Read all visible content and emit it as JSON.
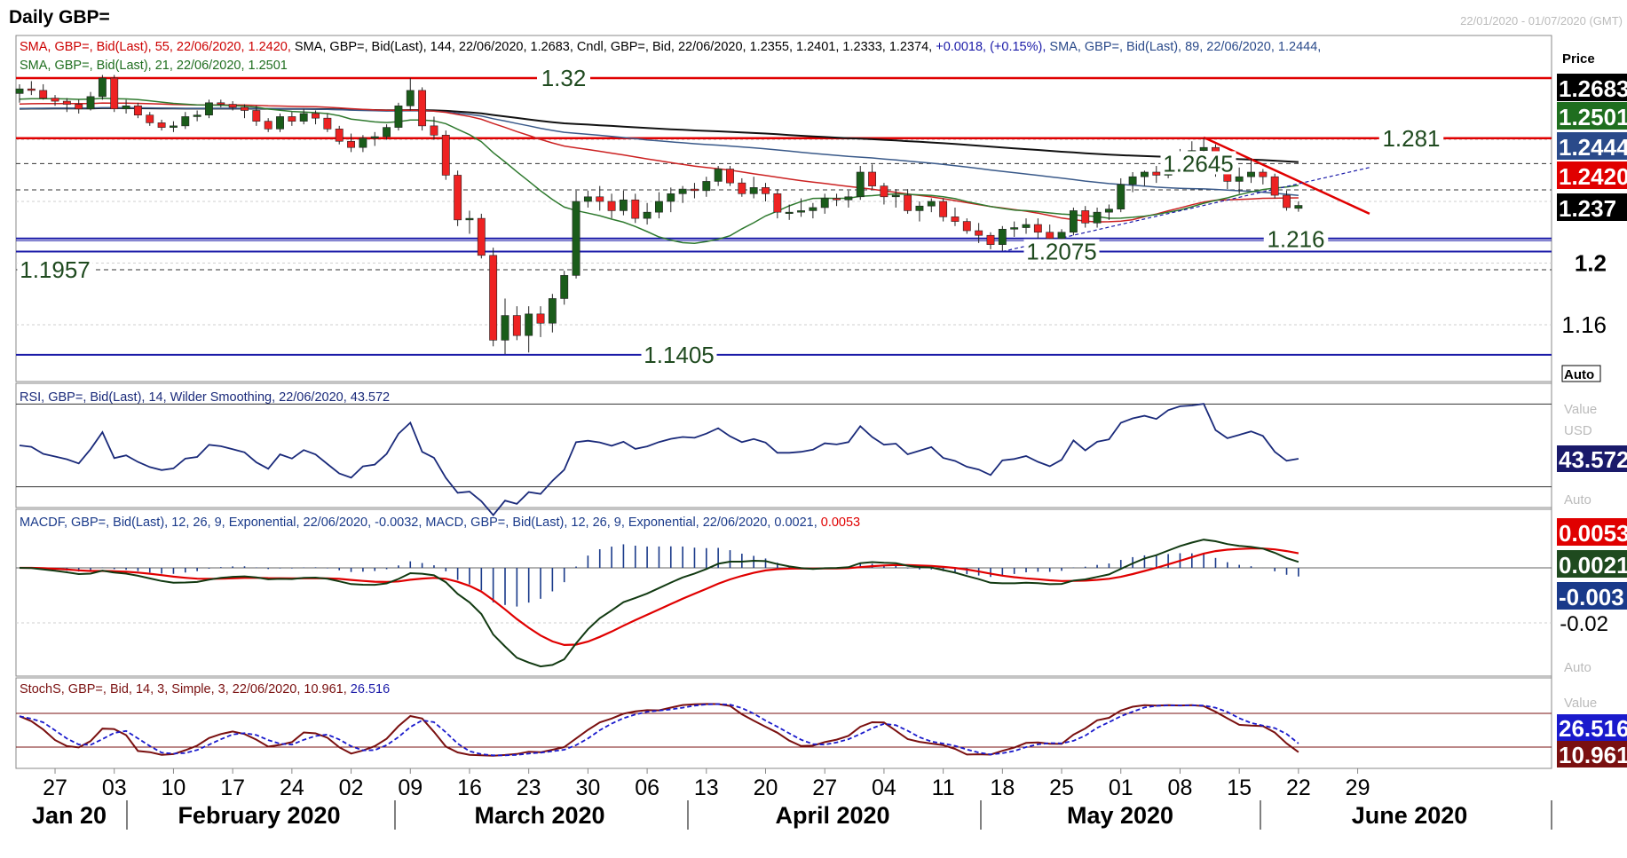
{
  "window": {
    "title": "Daily GBP=",
    "date_range": "22/01/2020 - 01/07/2020 (GMT)"
  },
  "panes": {
    "price": {
      "legend_line1": [
        {
          "text": "SMA, GBP=, Bid(Last),  55, 22/06/2020, 1.2420,",
          "color": "#cc0000"
        },
        {
          "text": " SMA, GBP=, Bid(Last),  144, 22/06/2020, 1.2683,",
          "color": "#000000"
        },
        {
          "text": " Cndl, GBP=, Bid,  22/06/2020, 1.2355, 1.2401, 1.2333, 1.2374,",
          "color": "#000000"
        },
        {
          "text": " +0.0018, (+0.15%),",
          "color": "#1a1aa8"
        },
        {
          "text": " SMA, GBP=, Bid(Last),  89, 22/06/2020, 1.2444,",
          "color": "#2a4a8a"
        }
      ],
      "legend_line2": [
        {
          "text": "SMA, GBP=, Bid(Last),  21, 22/06/2020, 1.2501",
          "color": "#1f6e1f"
        }
      ],
      "axis_title": "Price",
      "auto_label": "Auto",
      "tick_labels": [
        "1.2",
        "1.16"
      ],
      "value_badges": [
        {
          "text": "1.2683",
          "bg": "#000000",
          "fg": "#ffffff"
        },
        {
          "text": "1.2501",
          "bg": "#1f6e1f",
          "fg": "#ffffff"
        },
        {
          "text": "1.2444",
          "bg": "#2a4a8a",
          "fg": "#ffffff"
        },
        {
          "text": "1.2420",
          "bg": "#e00000",
          "fg": "#ffffff"
        },
        {
          "text": "1.237",
          "bg": "#000000",
          "fg": "#ffffff"
        }
      ],
      "level_labels": [
        "1.32",
        "1.281",
        "1.2645",
        "1.216",
        "1.2075",
        "1.1957",
        "1.1405"
      ]
    },
    "rsi": {
      "legend": "RSI, GBP=, Bid(Last),  14, Wilder Smoothing, 22/06/2020, 43.572",
      "axis_value": "Value",
      "axis_unit": "USD",
      "badge": "43.572",
      "auto_label": "Auto"
    },
    "macd": {
      "legend": [
        {
          "text": "MACDF, GBP=, Bid(Last),  12, 26, 9, Exponential, 22/06/2020, -0.0032,",
          "color": "#1a3a8a"
        },
        {
          "text": " MACD, GBP=, Bid(Last),  12, 26, 9, Exponential, 22/06/2020, 0.0021,",
          "color": "#1a3a8a"
        },
        {
          "text": " 0.0053",
          "color": "#e00000"
        }
      ],
      "tick_label": "-0.02",
      "badges": [
        {
          "text": "0.0053",
          "bg": "#e00000"
        },
        {
          "text": "0.0021",
          "bg": "#1f4a1f"
        },
        {
          "text": "-0.003",
          "bg": "#1a3a8a"
        }
      ],
      "auto_label": "Auto"
    },
    "stoch": {
      "legend": [
        {
          "text": "StochS, GBP=, Bid,  14, 3, Simple, 3, 22/06/2020, 10.961,",
          "color": "#7a1010"
        },
        {
          "text": " 26.516",
          "color": "#1a1aa8"
        }
      ],
      "axis_value": "Value",
      "badges": [
        {
          "text": "26.516",
          "bg": "#1a1acc"
        },
        {
          "text": "10.961",
          "bg": "#7a1010"
        }
      ]
    }
  },
  "x_axis": {
    "day_ticks": [
      "27",
      "03",
      "10",
      "17",
      "24",
      "02",
      "09",
      "16",
      "23",
      "30",
      "06",
      "13",
      "20",
      "27",
      "04",
      "11",
      "18",
      "25",
      "01",
      "08",
      "15",
      "22",
      "29"
    ],
    "month_labels": [
      "Jan 20",
      "February 2020",
      "March 2020",
      "April 2020",
      "May 2020",
      "June 2020"
    ]
  },
  "colors": {
    "bull": "#1a5c1a",
    "bear": "#ee2222",
    "sma55": "#cc2222",
    "sma144": "#111111",
    "sma89": "#3a5a8a",
    "sma21": "#2f7a2f",
    "resistance": "#e00000",
    "support": "#1a1aa8",
    "rsi_line": "#1a2a7a",
    "macd_line": "#123a12",
    "signal_line": "#e00000",
    "hist": "#1a3a8a",
    "stoch_k": "#7a1010",
    "stoch_d": "#1a1acc"
  },
  "chart_data": {
    "type": "candlestick",
    "title": "Daily GBP=",
    "period": "22/01/2020 - 01/07/2020 (GMT)",
    "ylim": [
      1.14,
      1.335
    ],
    "ohlc": [
      {
        "d": "22/01",
        "o": 1.31,
        "h": 1.316,
        "l": 1.304,
        "c": 1.313
      },
      {
        "d": "23/01",
        "o": 1.313,
        "h": 1.318,
        "l": 1.309,
        "c": 1.312
      },
      {
        "d": "24/01",
        "o": 1.312,
        "h": 1.316,
        "l": 1.306,
        "c": 1.307
      },
      {
        "d": "27/01",
        "o": 1.307,
        "h": 1.309,
        "l": 1.302,
        "c": 1.305
      },
      {
        "d": "28/01",
        "o": 1.305,
        "h": 1.307,
        "l": 1.298,
        "c": 1.303
      },
      {
        "d": "29/01",
        "o": 1.303,
        "h": 1.306,
        "l": 1.297,
        "c": 1.3
      },
      {
        "d": "30/01",
        "o": 1.3,
        "h": 1.311,
        "l": 1.299,
        "c": 1.308
      },
      {
        "d": "31/01",
        "o": 1.308,
        "h": 1.322,
        "l": 1.306,
        "c": 1.32
      },
      {
        "d": "03/02",
        "o": 1.32,
        "h": 1.322,
        "l": 1.298,
        "c": 1.3
      },
      {
        "d": "04/02",
        "o": 1.3,
        "h": 1.306,
        "l": 1.297,
        "c": 1.302
      },
      {
        "d": "05/02",
        "o": 1.302,
        "h": 1.304,
        "l": 1.294,
        "c": 1.296
      },
      {
        "d": "06/02",
        "o": 1.296,
        "h": 1.298,
        "l": 1.289,
        "c": 1.291
      },
      {
        "d": "07/02",
        "o": 1.291,
        "h": 1.293,
        "l": 1.286,
        "c": 1.288
      },
      {
        "d": "10/02",
        "o": 1.288,
        "h": 1.292,
        "l": 1.285,
        "c": 1.289
      },
      {
        "d": "11/02",
        "o": 1.289,
        "h": 1.298,
        "l": 1.287,
        "c": 1.295
      },
      {
        "d": "12/02",
        "o": 1.295,
        "h": 1.299,
        "l": 1.292,
        "c": 1.296
      },
      {
        "d": "13/02",
        "o": 1.296,
        "h": 1.306,
        "l": 1.294,
        "c": 1.304
      },
      {
        "d": "14/02",
        "o": 1.304,
        "h": 1.306,
        "l": 1.301,
        "c": 1.303
      },
      {
        "d": "17/02",
        "o": 1.303,
        "h": 1.305,
        "l": 1.299,
        "c": 1.301
      },
      {
        "d": "18/02",
        "o": 1.301,
        "h": 1.303,
        "l": 1.294,
        "c": 1.299
      },
      {
        "d": "19/02",
        "o": 1.299,
        "h": 1.302,
        "l": 1.289,
        "c": 1.292
      },
      {
        "d": "20/02",
        "o": 1.292,
        "h": 1.294,
        "l": 1.285,
        "c": 1.287
      },
      {
        "d": "21/02",
        "o": 1.287,
        "h": 1.297,
        "l": 1.285,
        "c": 1.295
      },
      {
        "d": "24/02",
        "o": 1.295,
        "h": 1.298,
        "l": 1.289,
        "c": 1.292
      },
      {
        "d": "25/02",
        "o": 1.292,
        "h": 1.3,
        "l": 1.29,
        "c": 1.297
      },
      {
        "d": "26/02",
        "o": 1.297,
        "h": 1.299,
        "l": 1.29,
        "c": 1.294
      },
      {
        "d": "27/02",
        "o": 1.294,
        "h": 1.297,
        "l": 1.285,
        "c": 1.287
      },
      {
        "d": "28/02",
        "o": 1.287,
        "h": 1.289,
        "l": 1.277,
        "c": 1.279
      },
      {
        "d": "02/03",
        "o": 1.279,
        "h": 1.284,
        "l": 1.272,
        "c": 1.275
      },
      {
        "d": "03/03",
        "o": 1.275,
        "h": 1.283,
        "l": 1.272,
        "c": 1.281
      },
      {
        "d": "04/03",
        "o": 1.281,
        "h": 1.285,
        "l": 1.276,
        "c": 1.282
      },
      {
        "d": "05/03",
        "o": 1.282,
        "h": 1.29,
        "l": 1.28,
        "c": 1.288
      },
      {
        "d": "06/03",
        "o": 1.288,
        "h": 1.304,
        "l": 1.286,
        "c": 1.302
      },
      {
        "d": "09/03",
        "o": 1.302,
        "h": 1.32,
        "l": 1.299,
        "c": 1.312
      },
      {
        "d": "10/03",
        "o": 1.312,
        "h": 1.314,
        "l": 1.286,
        "c": 1.289
      },
      {
        "d": "11/03",
        "o": 1.289,
        "h": 1.295,
        "l": 1.28,
        "c": 1.283
      },
      {
        "d": "12/03",
        "o": 1.283,
        "h": 1.286,
        "l": 1.254,
        "c": 1.257
      },
      {
        "d": "13/03",
        "o": 1.257,
        "h": 1.26,
        "l": 1.224,
        "c": 1.228
      },
      {
        "d": "16/03",
        "o": 1.228,
        "h": 1.234,
        "l": 1.219,
        "c": 1.229
      },
      {
        "d": "17/03",
        "o": 1.229,
        "h": 1.232,
        "l": 1.203,
        "c": 1.205
      },
      {
        "d": "18/03",
        "o": 1.205,
        "h": 1.21,
        "l": 1.146,
        "c": 1.15
      },
      {
        "d": "19/03",
        "o": 1.15,
        "h": 1.177,
        "l": 1.141,
        "c": 1.166
      },
      {
        "d": "20/03",
        "o": 1.166,
        "h": 1.172,
        "l": 1.15,
        "c": 1.153
      },
      {
        "d": "23/03",
        "o": 1.153,
        "h": 1.172,
        "l": 1.142,
        "c": 1.167
      },
      {
        "d": "24/03",
        "o": 1.167,
        "h": 1.172,
        "l": 1.152,
        "c": 1.161
      },
      {
        "d": "25/03",
        "o": 1.161,
        "h": 1.18,
        "l": 1.155,
        "c": 1.177
      },
      {
        "d": "26/03",
        "o": 1.177,
        "h": 1.195,
        "l": 1.173,
        "c": 1.192
      },
      {
        "d": "27/03",
        "o": 1.192,
        "h": 1.247,
        "l": 1.19,
        "c": 1.24
      },
      {
        "d": "30/03",
        "o": 1.24,
        "h": 1.247,
        "l": 1.236,
        "c": 1.243
      },
      {
        "d": "31/03",
        "o": 1.243,
        "h": 1.25,
        "l": 1.234,
        "c": 1.24
      },
      {
        "d": "01/04",
        "o": 1.24,
        "h": 1.245,
        "l": 1.229,
        "c": 1.234
      },
      {
        "d": "02/04",
        "o": 1.234,
        "h": 1.247,
        "l": 1.231,
        "c": 1.241
      },
      {
        "d": "03/04",
        "o": 1.241,
        "h": 1.245,
        "l": 1.226,
        "c": 1.229
      },
      {
        "d": "06/04",
        "o": 1.229,
        "h": 1.239,
        "l": 1.225,
        "c": 1.233
      },
      {
        "d": "07/04",
        "o": 1.233,
        "h": 1.246,
        "l": 1.229,
        "c": 1.24
      },
      {
        "d": "08/04",
        "o": 1.24,
        "h": 1.249,
        "l": 1.233,
        "c": 1.245
      },
      {
        "d": "09/04",
        "o": 1.245,
        "h": 1.25,
        "l": 1.239,
        "c": 1.248
      },
      {
        "d": "10/04",
        "o": 1.248,
        "h": 1.252,
        "l": 1.242,
        "c": 1.247
      },
      {
        "d": "13/04",
        "o": 1.247,
        "h": 1.256,
        "l": 1.243,
        "c": 1.253
      },
      {
        "d": "14/04",
        "o": 1.253,
        "h": 1.263,
        "l": 1.25,
        "c": 1.261
      },
      {
        "d": "15/04",
        "o": 1.261,
        "h": 1.263,
        "l": 1.25,
        "c": 1.252
      },
      {
        "d": "16/04",
        "o": 1.252,
        "h": 1.255,
        "l": 1.243,
        "c": 1.245
      },
      {
        "d": "17/04",
        "o": 1.245,
        "h": 1.256,
        "l": 1.242,
        "c": 1.249
      },
      {
        "d": "20/04",
        "o": 1.249,
        "h": 1.252,
        "l": 1.24,
        "c": 1.245
      },
      {
        "d": "21/04",
        "o": 1.245,
        "h": 1.248,
        "l": 1.229,
        "c": 1.233
      },
      {
        "d": "22/04",
        "o": 1.233,
        "h": 1.238,
        "l": 1.228,
        "c": 1.233
      },
      {
        "d": "23/04",
        "o": 1.233,
        "h": 1.242,
        "l": 1.23,
        "c": 1.234
      },
      {
        "d": "24/04",
        "o": 1.234,
        "h": 1.239,
        "l": 1.229,
        "c": 1.236
      },
      {
        "d": "27/04",
        "o": 1.236,
        "h": 1.245,
        "l": 1.232,
        "c": 1.242
      },
      {
        "d": "28/04",
        "o": 1.242,
        "h": 1.245,
        "l": 1.237,
        "c": 1.241
      },
      {
        "d": "29/04",
        "o": 1.241,
        "h": 1.247,
        "l": 1.236,
        "c": 1.243
      },
      {
        "d": "30/04",
        "o": 1.243,
        "h": 1.263,
        "l": 1.241,
        "c": 1.259
      },
      {
        "d": "01/05",
        "o": 1.259,
        "h": 1.264,
        "l": 1.248,
        "c": 1.25
      },
      {
        "d": "04/05",
        "o": 1.25,
        "h": 1.252,
        "l": 1.238,
        "c": 1.243
      },
      {
        "d": "05/05",
        "o": 1.243,
        "h": 1.248,
        "l": 1.236,
        "c": 1.244
      },
      {
        "d": "06/05",
        "o": 1.244,
        "h": 1.248,
        "l": 1.232,
        "c": 1.234
      },
      {
        "d": "07/05",
        "o": 1.234,
        "h": 1.24,
        "l": 1.227,
        "c": 1.237
      },
      {
        "d": "08/05",
        "o": 1.237,
        "h": 1.242,
        "l": 1.233,
        "c": 1.24
      },
      {
        "d": "11/05",
        "o": 1.24,
        "h": 1.242,
        "l": 1.227,
        "c": 1.23
      },
      {
        "d": "12/05",
        "o": 1.23,
        "h": 1.236,
        "l": 1.224,
        "c": 1.227
      },
      {
        "d": "13/05",
        "o": 1.227,
        "h": 1.229,
        "l": 1.219,
        "c": 1.221
      },
      {
        "d": "14/05",
        "o": 1.221,
        "h": 1.226,
        "l": 1.213,
        "c": 1.218
      },
      {
        "d": "15/05",
        "o": 1.218,
        "h": 1.22,
        "l": 1.209,
        "c": 1.212
      },
      {
        "d": "18/05",
        "o": 1.212,
        "h": 1.224,
        "l": 1.208,
        "c": 1.222
      },
      {
        "d": "19/05",
        "o": 1.222,
        "h": 1.227,
        "l": 1.217,
        "c": 1.223
      },
      {
        "d": "20/05",
        "o": 1.223,
        "h": 1.229,
        "l": 1.219,
        "c": 1.225
      },
      {
        "d": "21/05",
        "o": 1.225,
        "h": 1.229,
        "l": 1.216,
        "c": 1.22
      },
      {
        "d": "22/05",
        "o": 1.22,
        "h": 1.225,
        "l": 1.213,
        "c": 1.216
      },
      {
        "d": "25/05",
        "o": 1.216,
        "h": 1.222,
        "l": 1.215,
        "c": 1.22
      },
      {
        "d": "26/05",
        "o": 1.22,
        "h": 1.236,
        "l": 1.218,
        "c": 1.234
      },
      {
        "d": "27/05",
        "o": 1.234,
        "h": 1.237,
        "l": 1.223,
        "c": 1.226
      },
      {
        "d": "28/05",
        "o": 1.226,
        "h": 1.236,
        "l": 1.223,
        "c": 1.233
      },
      {
        "d": "29/05",
        "o": 1.233,
        "h": 1.238,
        "l": 1.228,
        "c": 1.235
      },
      {
        "d": "01/06",
        "o": 1.235,
        "h": 1.255,
        "l": 1.233,
        "c": 1.251
      },
      {
        "d": "02/06",
        "o": 1.251,
        "h": 1.259,
        "l": 1.246,
        "c": 1.256
      },
      {
        "d": "03/06",
        "o": 1.256,
        "h": 1.26,
        "l": 1.25,
        "c": 1.259
      },
      {
        "d": "04/06",
        "o": 1.259,
        "h": 1.263,
        "l": 1.252,
        "c": 1.257
      },
      {
        "d": "05/06",
        "o": 1.257,
        "h": 1.269,
        "l": 1.255,
        "c": 1.267
      },
      {
        "d": "08/06",
        "o": 1.267,
        "h": 1.274,
        "l": 1.262,
        "c": 1.272
      },
      {
        "d": "09/06",
        "o": 1.272,
        "h": 1.279,
        "l": 1.266,
        "c": 1.273
      },
      {
        "d": "10/06",
        "o": 1.273,
        "h": 1.281,
        "l": 1.269,
        "c": 1.275
      },
      {
        "d": "11/06",
        "o": 1.275,
        "h": 1.277,
        "l": 1.256,
        "c": 1.259
      },
      {
        "d": "12/06",
        "o": 1.259,
        "h": 1.266,
        "l": 1.248,
        "c": 1.253
      },
      {
        "d": "15/06",
        "o": 1.253,
        "h": 1.262,
        "l": 1.245,
        "c": 1.256
      },
      {
        "d": "16/06",
        "o": 1.256,
        "h": 1.268,
        "l": 1.252,
        "c": 1.259
      },
      {
        "d": "17/06",
        "o": 1.259,
        "h": 1.261,
        "l": 1.251,
        "c": 1.256
      },
      {
        "d": "18/06",
        "o": 1.256,
        "h": 1.258,
        "l": 1.242,
        "c": 1.244
      },
      {
        "d": "19/06",
        "o": 1.244,
        "h": 1.247,
        "l": 1.234,
        "c": 1.236
      },
      {
        "d": "22/06",
        "o": 1.2355,
        "h": 1.2401,
        "l": 1.2333,
        "c": 1.2374
      }
    ],
    "sma": [
      {
        "name": "SMA 55",
        "period": 55,
        "last": 1.242
      },
      {
        "name": "SMA 144",
        "period": 144,
        "last": 1.2683
      },
      {
        "name": "SMA 89",
        "period": 89,
        "last": 1.2444
      },
      {
        "name": "SMA 21",
        "period": 21,
        "last": 1.2501
      }
    ],
    "horizontal_levels": [
      {
        "value": 1.32,
        "kind": "resistance"
      },
      {
        "value": 1.281,
        "kind": "resistance"
      },
      {
        "value": 1.2645,
        "kind": "pivot"
      },
      {
        "value": 1.2475,
        "kind": "pivot"
      },
      {
        "value": 1.216,
        "kind": "support"
      },
      {
        "value": 1.2075,
        "kind": "support"
      },
      {
        "value": 1.1957,
        "kind": "pivot"
      },
      {
        "value": 1.1405,
        "kind": "support"
      }
    ],
    "trendlines": [
      {
        "kind": "downtrend",
        "from": {
          "d": "10/06",
          "y": 1.2815
        },
        "to": {
          "d": "30/06",
          "y": 1.232
        }
      },
      {
        "kind": "uptrend",
        "from": {
          "d": "18/05",
          "y": 1.2075
        },
        "to": {
          "d": "30/06",
          "y": 1.262
        }
      }
    ],
    "rsi": {
      "period": 14,
      "last": 43.572
    },
    "macd": {
      "last_hist": -0.0032,
      "last_macd": 0.0021,
      "last_signal": 0.0053
    },
    "stoch": {
      "k": 10.961,
      "d": 26.516
    }
  }
}
